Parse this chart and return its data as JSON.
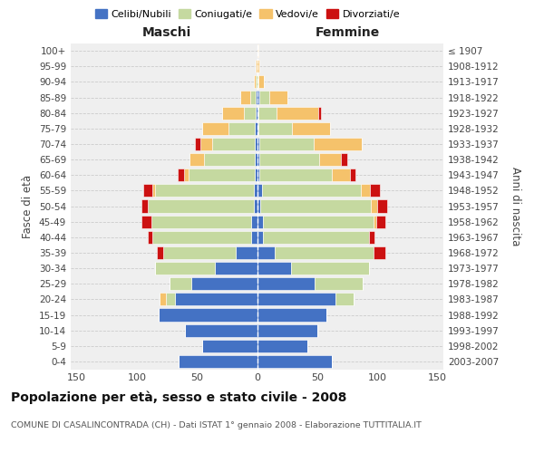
{
  "age_groups": [
    "0-4",
    "5-9",
    "10-14",
    "15-19",
    "20-24",
    "25-29",
    "30-34",
    "35-39",
    "40-44",
    "45-49",
    "50-54",
    "55-59",
    "60-64",
    "65-69",
    "70-74",
    "75-79",
    "80-84",
    "85-89",
    "90-94",
    "95-99",
    "100+"
  ],
  "birth_years": [
    "2003-2007",
    "1998-2002",
    "1993-1997",
    "1988-1992",
    "1983-1987",
    "1978-1982",
    "1973-1977",
    "1968-1972",
    "1963-1967",
    "1958-1962",
    "1953-1957",
    "1948-1952",
    "1943-1947",
    "1938-1942",
    "1933-1937",
    "1928-1932",
    "1923-1927",
    "1918-1922",
    "1913-1917",
    "1908-1912",
    "≤ 1907"
  ],
  "male_celibe": [
    65,
    46,
    60,
    82,
    68,
    55,
    35,
    18,
    5,
    5,
    3,
    3,
    2,
    2,
    2,
    2,
    1,
    1,
    0,
    0,
    0
  ],
  "male_coniugati": [
    0,
    0,
    0,
    0,
    8,
    18,
    50,
    60,
    82,
    83,
    88,
    82,
    55,
    42,
    35,
    22,
    10,
    5,
    1,
    0,
    0
  ],
  "male_vedovi": [
    0,
    0,
    0,
    0,
    5,
    0,
    0,
    0,
    0,
    0,
    0,
    2,
    4,
    12,
    10,
    22,
    18,
    8,
    2,
    1,
    0
  ],
  "male_divorziati": [
    0,
    0,
    0,
    0,
    0,
    0,
    0,
    5,
    4,
    8,
    5,
    8,
    5,
    0,
    5,
    0,
    0,
    0,
    0,
    0,
    0
  ],
  "female_celibe": [
    62,
    42,
    50,
    58,
    65,
    48,
    28,
    15,
    5,
    5,
    3,
    4,
    2,
    2,
    2,
    1,
    1,
    2,
    0,
    0,
    0
  ],
  "female_coniugati": [
    0,
    0,
    0,
    0,
    15,
    40,
    65,
    82,
    88,
    92,
    92,
    82,
    60,
    50,
    45,
    28,
    15,
    8,
    1,
    0,
    0
  ],
  "female_vedovi": [
    0,
    0,
    0,
    0,
    0,
    0,
    0,
    0,
    0,
    2,
    5,
    8,
    15,
    18,
    40,
    32,
    35,
    15,
    5,
    2,
    1
  ],
  "female_divorziati": [
    0,
    0,
    0,
    0,
    0,
    0,
    0,
    10,
    5,
    8,
    8,
    8,
    5,
    5,
    0,
    0,
    2,
    0,
    0,
    0,
    0
  ],
  "color_celibe": "#4472c4",
  "color_coniugati": "#c5d9a0",
  "color_vedovi": "#f5c26b",
  "color_divorziati": "#cc1111",
  "label_celibe": "Celibi/Nubili",
  "label_coniugati": "Coniugati/e",
  "label_vedovi": "Vedovi/e",
  "label_divorziati": "Divorziati/e",
  "title": "Popolazione per età, sesso e stato civile - 2008",
  "subtitle": "COMUNE DI CASALINCONTRADA (CH) - Dati ISTAT 1° gennaio 2008 - Elaborazione TUTTITALIA.IT",
  "ylabel_left": "Fasce di età",
  "ylabel_right": "Anni di nascita",
  "xlabel_left": "Maschi",
  "xlabel_right": "Femmine",
  "xlim": 155,
  "xticks": [
    -150,
    -100,
    -50,
    0,
    50,
    100,
    150
  ],
  "xtick_labels": [
    "150",
    "100",
    "50",
    "0",
    "50",
    "100",
    "150"
  ],
  "background_color": "#ffffff",
  "plot_bg_color": "#efefef",
  "grid_color": "#cccccc"
}
